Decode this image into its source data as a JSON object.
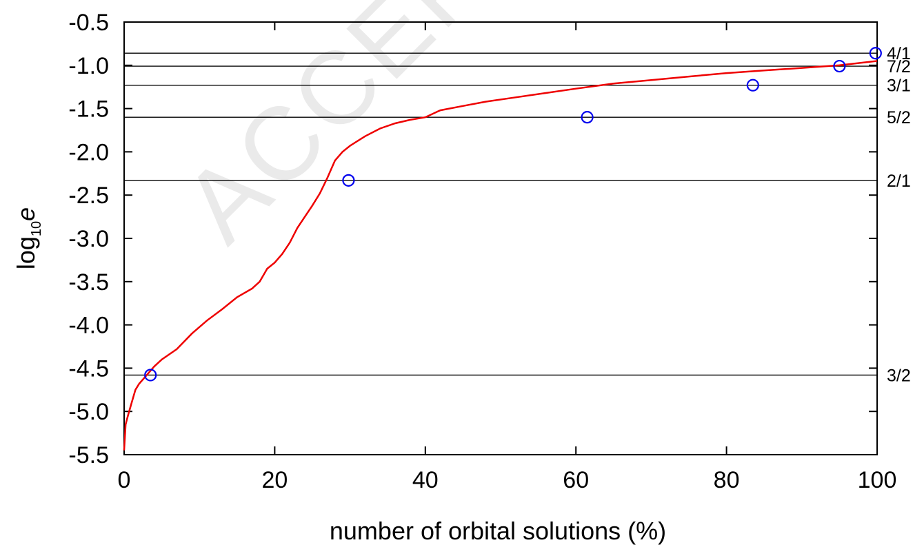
{
  "chart_data": {
    "type": "line",
    "watermark": "ACCEPTED",
    "xlabel": "number of orbital solutions (%)",
    "ylabel": {
      "main": "log",
      "sub": "10",
      "var": "e"
    },
    "xlim": [
      0,
      100
    ],
    "ylim": [
      -5.5,
      -0.5
    ],
    "xticks": [
      0,
      20,
      40,
      60,
      80,
      100
    ],
    "xtick_labels": [
      "0",
      "20",
      "40",
      "60",
      "80",
      "100"
    ],
    "yticks": [
      -0.5,
      -1.0,
      -1.5,
      -2.0,
      -2.5,
      -3.0,
      -3.5,
      -4.0,
      -4.5,
      -5.0,
      -5.5
    ],
    "ytick_labels": [
      "-0.5",
      "-1.0",
      "-1.5",
      "-2.0",
      "-2.5",
      "-3.0",
      "-3.5",
      "-4.0",
      "-4.5",
      "-5.0",
      "-5.5"
    ],
    "grid": false,
    "colors": {
      "curve": "#ee0000",
      "markers": "#0000ee",
      "reference_lines": "#000000",
      "watermark": "#d9d9d9"
    },
    "series": [
      {
        "style": "line",
        "x": [
          0,
          0.2,
          0.5,
          1,
          1.5,
          2,
          3,
          4,
          5,
          7,
          9,
          11,
          13,
          15,
          17,
          18,
          19,
          20,
          21,
          22,
          23,
          24,
          25,
          26,
          27,
          27.5,
          28,
          29,
          30,
          32,
          34,
          36,
          38,
          40,
          42,
          45,
          48,
          52,
          56,
          60,
          65,
          70,
          75,
          80,
          85,
          90,
          95,
          100
        ],
        "y": [
          -5.45,
          -5.15,
          -5.05,
          -4.9,
          -4.75,
          -4.68,
          -4.58,
          -4.48,
          -4.4,
          -4.28,
          -4.1,
          -3.95,
          -3.82,
          -3.68,
          -3.58,
          -3.5,
          -3.35,
          -3.28,
          -3.18,
          -3.05,
          -2.88,
          -2.75,
          -2.62,
          -2.48,
          -2.3,
          -2.2,
          -2.1,
          -2.0,
          -1.93,
          -1.82,
          -1.73,
          -1.67,
          -1.63,
          -1.6,
          -1.52,
          -1.47,
          -1.42,
          -1.37,
          -1.32,
          -1.27,
          -1.21,
          -1.17,
          -1.13,
          -1.09,
          -1.06,
          -1.03,
          -1.0,
          -0.95
        ]
      },
      {
        "style": "markers",
        "x": [
          3.5,
          29.8,
          61.5,
          83.5,
          95,
          99.8
        ],
        "y": [
          -4.58,
          -2.33,
          -1.6,
          -1.23,
          -1.01,
          -0.86
        ]
      }
    ],
    "reference_lines": [
      {
        "y": -0.86,
        "label": "4/1"
      },
      {
        "y": -1.01,
        "label": "7/2"
      },
      {
        "y": -1.23,
        "label": "3/1"
      },
      {
        "y": -1.6,
        "label": "5/2"
      },
      {
        "y": -2.33,
        "label": "2/1"
      },
      {
        "y": -4.58,
        "label": "3/2"
      }
    ]
  }
}
